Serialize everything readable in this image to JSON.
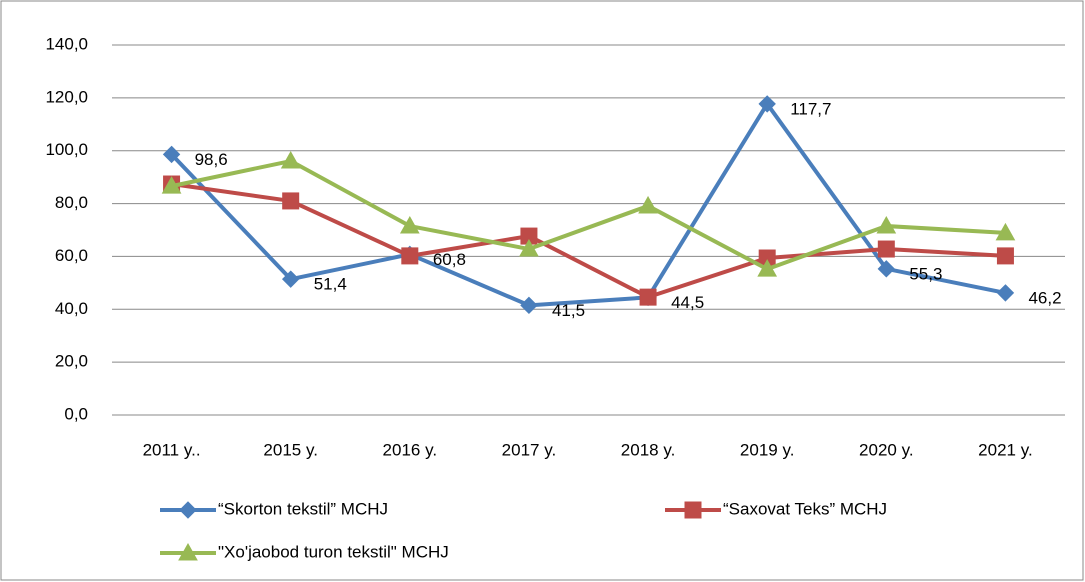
{
  "chart_data": {
    "type": "line",
    "categories": [
      "2011 y..",
      "2015 y.",
      "2016 y.",
      "2017 y.",
      "2018 y.",
      "2019 y.",
      "2020 y.",
      "2021 y."
    ],
    "series": [
      {
        "name": "“Skorton tekstil” MCHJ",
        "color": "#4a7ebb",
        "marker": "diamond",
        "values": [
          98.6,
          51.4,
          60.8,
          41.5,
          44.5,
          117.7,
          55.3,
          46.2
        ],
        "value_labels": [
          "98,6",
          "51,4",
          "60,8",
          "41,5",
          "44,5",
          "117,7",
          "55,3",
          "46,2"
        ]
      },
      {
        "name": "“Saxovat Teks” MCHJ",
        "color": "#be4b48",
        "marker": "square",
        "values": [
          87.4,
          81.0,
          60.2,
          67.7,
          44.6,
          59.4,
          62.8,
          60.2
        ]
      },
      {
        "name": "\"Xo'jaobod turon tekstil\" MCHJ",
        "color": "#98b954",
        "marker": "triangle",
        "values": [
          86.6,
          96.1,
          71.5,
          62.8,
          79.1,
          55.2,
          71.5,
          68.9
        ]
      }
    ],
    "ylim": [
      0,
      140
    ],
    "yticks": [
      {
        "value": 0,
        "label": "0,0"
      },
      {
        "value": 20,
        "label": "20,0"
      },
      {
        "value": 40,
        "label": "40,0"
      },
      {
        "value": 60,
        "label": "60,0"
      },
      {
        "value": 80,
        "label": "80,0"
      },
      {
        "value": 100,
        "label": "100,0"
      },
      {
        "value": 120,
        "label": "120,0"
      },
      {
        "value": 140,
        "label": "140,0"
      }
    ],
    "grid": true,
    "legend": "bottom"
  }
}
